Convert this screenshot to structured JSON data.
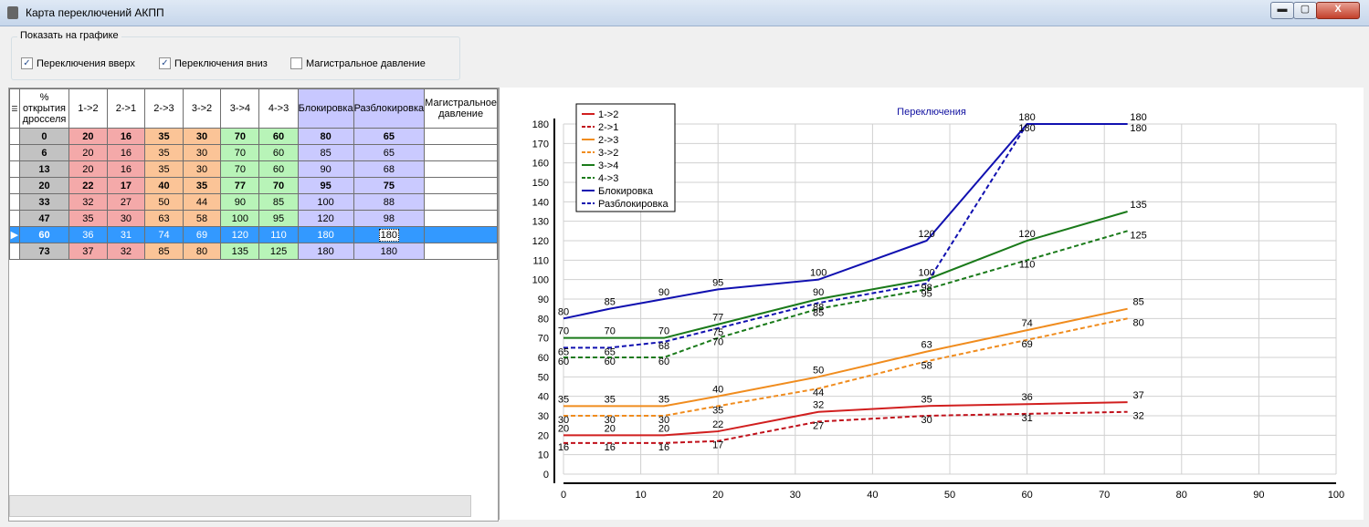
{
  "window": {
    "title": "Карта переключений АКПП",
    "min": "▬",
    "max": "▢",
    "close": "X"
  },
  "show_group": {
    "title": "Показать на графике",
    "options": [
      {
        "label": "Переключения вверх",
        "checked": true
      },
      {
        "label": "Переключения вниз",
        "checked": true
      },
      {
        "label": "Магистральное давление",
        "checked": false
      }
    ]
  },
  "grid": {
    "corner": "☰",
    "headers": [
      "% открытия дросселя",
      "1->2",
      "2->1",
      "2->3",
      "3->2",
      "3->4",
      "4->3",
      "Блокировка",
      "Разблокировка",
      "Магистральное давление"
    ],
    "rows": [
      {
        "marker": "",
        "cells": [
          "0",
          "20",
          "16",
          "35",
          "30",
          "70",
          "60",
          "80",
          "65",
          ""
        ]
      },
      {
        "marker": "",
        "cells": [
          "6",
          "20",
          "16",
          "35",
          "30",
          "70",
          "60",
          "85",
          "65",
          ""
        ]
      },
      {
        "marker": "",
        "cells": [
          "13",
          "20",
          "16",
          "35",
          "30",
          "70",
          "60",
          "90",
          "68",
          ""
        ]
      },
      {
        "marker": "",
        "cells": [
          "20",
          "22",
          "17",
          "40",
          "35",
          "77",
          "70",
          "95",
          "75",
          ""
        ]
      },
      {
        "marker": "",
        "cells": [
          "33",
          "32",
          "27",
          "50",
          "44",
          "90",
          "85",
          "100",
          "88",
          ""
        ]
      },
      {
        "marker": "",
        "cells": [
          "47",
          "35",
          "30",
          "63",
          "58",
          "100",
          "95",
          "120",
          "98",
          ""
        ]
      },
      {
        "marker": "▶",
        "cells": [
          "60",
          "36",
          "31",
          "74",
          "69",
          "120",
          "110",
          "180",
          "180",
          ""
        ]
      },
      {
        "marker": "",
        "cells": [
          "73",
          "37",
          "32",
          "85",
          "80",
          "135",
          "125",
          "180",
          "180",
          ""
        ]
      }
    ],
    "bold_rows": [
      0,
      3
    ],
    "selected_row": 6
  },
  "chart_data": {
    "type": "line",
    "title": "Переключения",
    "xlim": [
      0,
      100
    ],
    "ylim": [
      0,
      180
    ],
    "xticks": [
      0,
      10,
      20,
      30,
      40,
      50,
      60,
      70,
      80,
      90,
      100
    ],
    "yticks": [
      0,
      10,
      20,
      30,
      40,
      50,
      60,
      70,
      80,
      90,
      100,
      110,
      120,
      130,
      140,
      150,
      160,
      170,
      180
    ],
    "grid": true,
    "legend_position": "top-left",
    "x": [
      0,
      6,
      13,
      20,
      33,
      47,
      60,
      73
    ],
    "series": [
      {
        "name": "1->2",
        "color": "#d11f1f",
        "dash": false,
        "values": [
          20,
          20,
          20,
          22,
          32,
          35,
          36,
          37
        ]
      },
      {
        "name": "2->1",
        "color": "#c0101a",
        "dash": true,
        "values": [
          16,
          16,
          16,
          17,
          27,
          30,
          31,
          32
        ]
      },
      {
        "name": "2->3",
        "color": "#f08c1e",
        "dash": false,
        "values": [
          35,
          35,
          35,
          40,
          50,
          63,
          74,
          85
        ]
      },
      {
        "name": "3->2",
        "color": "#f08c1e",
        "dash": true,
        "values": [
          30,
          30,
          30,
          35,
          44,
          58,
          69,
          80
        ]
      },
      {
        "name": "3->4",
        "color": "#1a7a1a",
        "dash": false,
        "values": [
          70,
          70,
          70,
          77,
          90,
          100,
          120,
          135
        ]
      },
      {
        "name": "4->3",
        "color": "#1a7a1a",
        "dash": true,
        "values": [
          60,
          60,
          60,
          70,
          85,
          95,
          110,
          125
        ]
      },
      {
        "name": "Блокировка",
        "color": "#1010b0",
        "dash": false,
        "values": [
          80,
          85,
          90,
          95,
          100,
          120,
          180,
          180
        ]
      },
      {
        "name": "Разблокировка",
        "color": "#1010b0",
        "dash": true,
        "values": [
          65,
          65,
          68,
          75,
          88,
          98,
          180,
          180
        ]
      }
    ]
  }
}
